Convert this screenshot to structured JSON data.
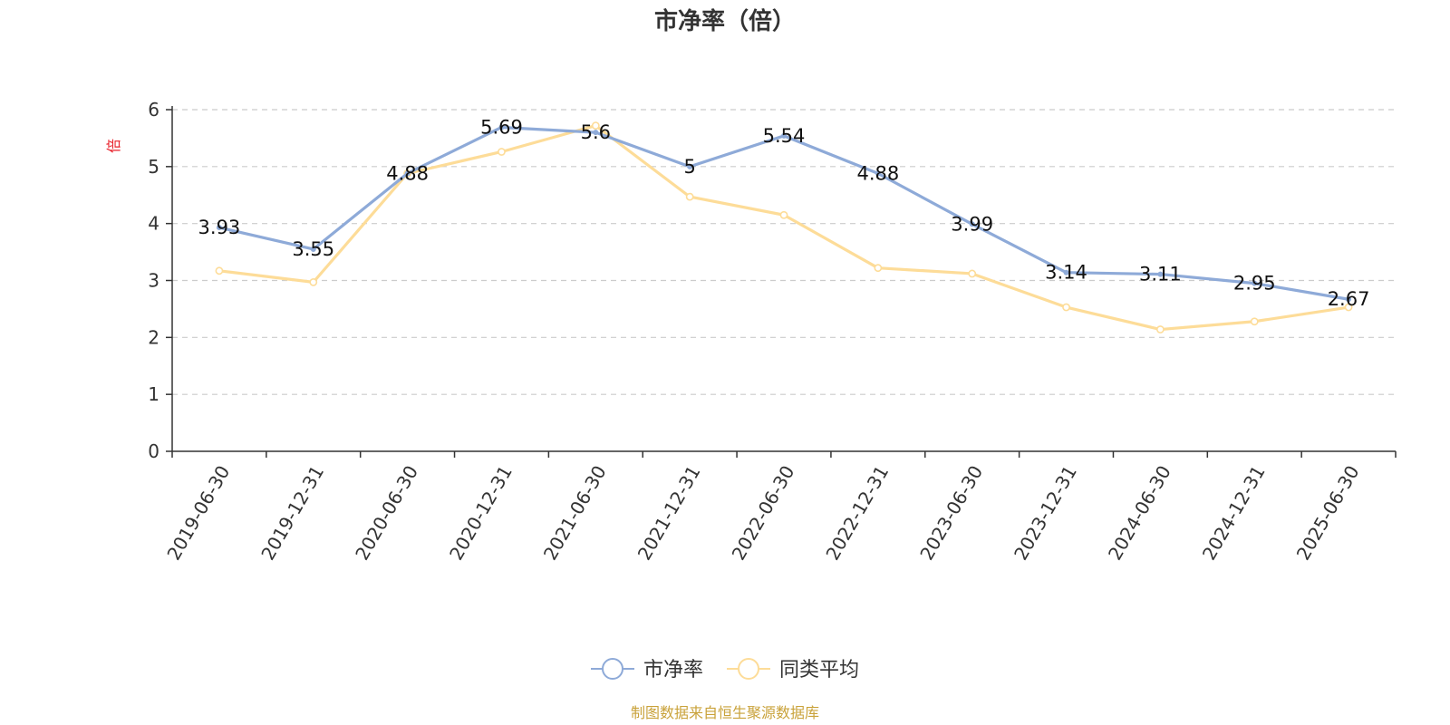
{
  "colors": {
    "series_1": "#8eaad8",
    "series_2": "#fddc98",
    "grid": "#cccccc",
    "axis": "#333333",
    "y_unit": "#e8202a",
    "source": "#c9a23a"
  },
  "footer": {
    "source": "制图数据来自恒生聚源数据库"
  },
  "chart_data": {
    "type": "line",
    "title": "市净率（倍）",
    "ylabel": "倍",
    "xlabel": "",
    "ylim": [
      0,
      6
    ],
    "yticks": [
      0,
      1,
      2,
      3,
      4,
      5,
      6
    ],
    "grid": true,
    "legend_position": "bottom-center",
    "categories": [
      "2019-06-30",
      "2019-12-31",
      "2020-06-30",
      "2020-12-31",
      "2021-06-30",
      "2021-12-31",
      "2022-06-30",
      "2022-12-31",
      "2023-06-30",
      "2023-12-31",
      "2024-06-30",
      "2024-12-31",
      "2025-06-30"
    ],
    "series": [
      {
        "name": "市净率",
        "values": [
          3.93,
          3.55,
          4.88,
          5.69,
          5.6,
          5,
          5.54,
          4.88,
          3.99,
          3.14,
          3.11,
          2.95,
          2.67
        ],
        "data_labels": true
      },
      {
        "name": "同类平均",
        "values": [
          3.17,
          2.97,
          4.88,
          5.26,
          5.72,
          4.47,
          4.15,
          3.22,
          3.12,
          2.53,
          2.14,
          2.28,
          2.53
        ],
        "data_labels": false
      }
    ]
  }
}
